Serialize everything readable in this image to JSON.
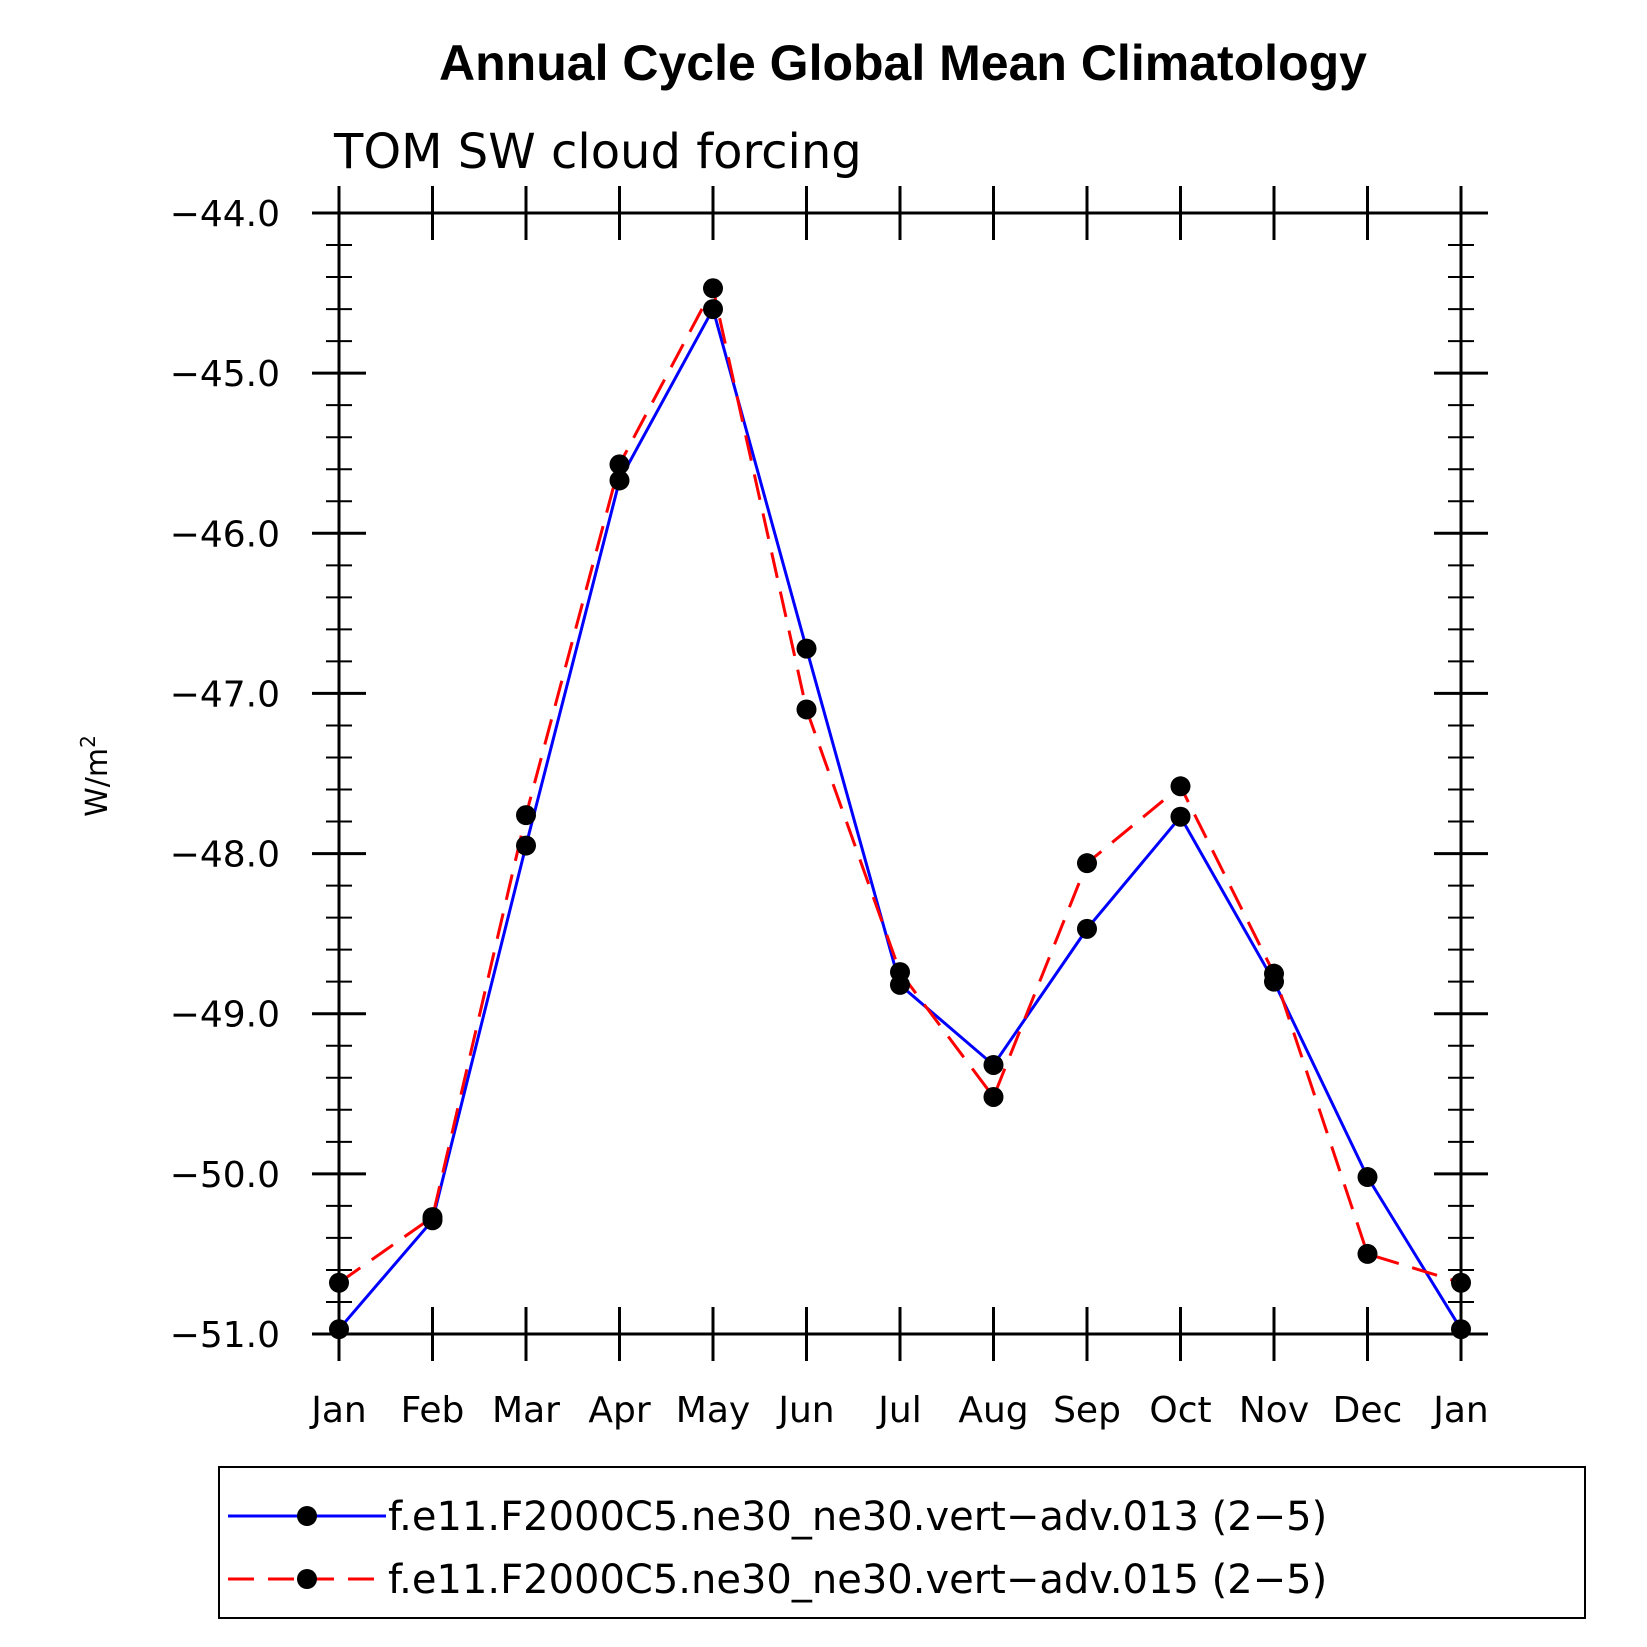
{
  "chart_data": {
    "type": "line",
    "title": "Annual Cycle Global Mean Climatology",
    "subtitle": "TOM SW cloud forcing",
    "ylabel": "W/m",
    "ylabel_superscript": "2",
    "ylim": [
      -51.0,
      -44.0
    ],
    "yticks": [
      -44.0,
      -45.0,
      -46.0,
      -47.0,
      -48.0,
      -49.0,
      -50.0,
      -51.0
    ],
    "ytick_labels": [
      "−44.0",
      "−45.0",
      "−46.0",
      "−47.0",
      "−48.0",
      "−49.0",
      "−50.0",
      "−51.0"
    ],
    "categories": [
      "Jan",
      "Feb",
      "Mar",
      "Apr",
      "May",
      "Jun",
      "Jul",
      "Aug",
      "Sep",
      "Oct",
      "Nov",
      "Dec",
      "Jan"
    ],
    "series": [
      {
        "name": "f.e11.F2000C5.ne30_ne30.vert−adv.013 (2−5)",
        "color": "#0000ff",
        "dash": "solid",
        "marker_color": "#000000",
        "values": [
          -50.97,
          -50.29,
          -47.95,
          -45.67,
          -44.6,
          -46.72,
          -48.82,
          -49.32,
          -48.47,
          -47.77,
          -48.8,
          -50.02,
          -50.97
        ]
      },
      {
        "name": "f.e11.F2000C5.ne30_ne30.vert−adv.015 (2−5)",
        "color": "#ff0000",
        "dash": "dashed",
        "marker_color": "#000000",
        "values": [
          -50.68,
          -50.27,
          -47.76,
          -45.57,
          -44.47,
          -47.1,
          -48.74,
          -49.52,
          -48.06,
          -47.58,
          -48.75,
          -50.5,
          -50.68
        ]
      }
    ],
    "grid": false,
    "legend_position": "bottom"
  }
}
